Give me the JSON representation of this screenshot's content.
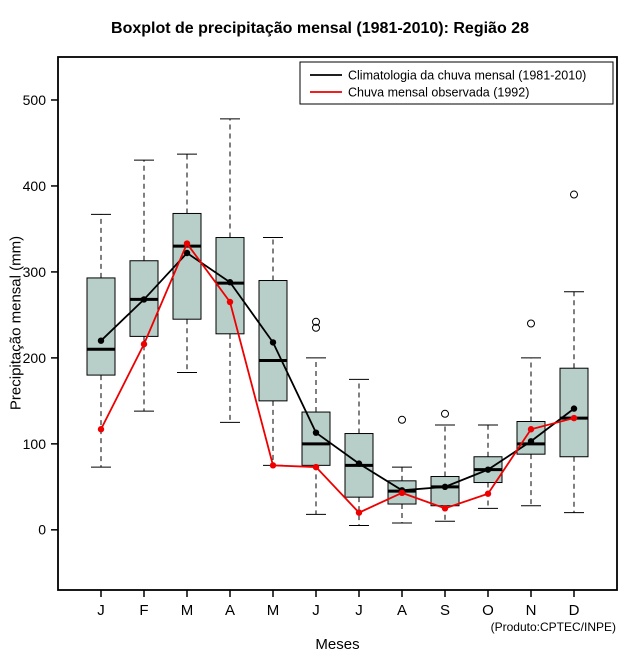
{
  "chart_data": {
    "type": "boxplot",
    "title": "Boxplot de precipitação mensal (1981-2010): Região 28",
    "xlabel": "Meses",
    "ylabel": "Precipitação mensal (mm)",
    "annotation": "(Produto:CPTEC/INPE)",
    "categories": [
      "J",
      "F",
      "M",
      "A",
      "M",
      "J",
      "J",
      "A",
      "S",
      "O",
      "N",
      "D"
    ],
    "yticks": [
      0,
      100,
      200,
      300,
      400,
      500
    ],
    "ylim": [
      -70,
      550
    ],
    "grid": false,
    "legend_position": "top-right-inside",
    "box_fill": "#b8cec8",
    "box_stroke": "#000000",
    "boxes": [
      {
        "low": 73,
        "q1": 180,
        "median": 210,
        "q3": 293,
        "high": 367,
        "outliers": []
      },
      {
        "low": 138,
        "q1": 225,
        "median": 268,
        "q3": 313,
        "high": 430,
        "outliers": []
      },
      {
        "low": 183,
        "q1": 245,
        "median": 330,
        "q3": 368,
        "high": 437,
        "outliers": []
      },
      {
        "low": 125,
        "q1": 228,
        "median": 287,
        "q3": 340,
        "high": 478,
        "outliers": []
      },
      {
        "low": 75,
        "q1": 150,
        "median": 197,
        "q3": 290,
        "high": 340,
        "outliers": []
      },
      {
        "low": 18,
        "q1": 75,
        "median": 100,
        "q3": 137,
        "high": 200,
        "outliers": [
          235,
          242
        ]
      },
      {
        "low": 5,
        "q1": 38,
        "median": 75,
        "q3": 112,
        "high": 175,
        "outliers": []
      },
      {
        "low": 8,
        "q1": 30,
        "median": 45,
        "q3": 57,
        "high": 73,
        "outliers": [
          128
        ]
      },
      {
        "low": 10,
        "q1": 28,
        "median": 50,
        "q3": 62,
        "high": 122,
        "outliers": [
          135
        ]
      },
      {
        "low": 25,
        "q1": 55,
        "median": 70,
        "q3": 85,
        "high": 122,
        "outliers": []
      },
      {
        "low": 28,
        "q1": 88,
        "median": 100,
        "q3": 126,
        "high": 200,
        "outliers": [
          240
        ]
      },
      {
        "low": 20,
        "q1": 85,
        "median": 130,
        "q3": 188,
        "high": 277,
        "outliers": [
          390
        ]
      }
    ],
    "series": [
      {
        "name": "Climatologia da chuva mensal (1981-2010)",
        "color": "#000000",
        "marker": "filled-circle",
        "values": [
          220,
          268,
          322,
          288,
          218,
          113,
          77,
          46,
          50,
          70,
          103,
          141
        ]
      },
      {
        "name": "Chuva mensal observada (1992)",
        "color": "#ee0000",
        "marker": "filled-circle",
        "values": [
          117,
          216,
          333,
          265,
          75,
          73,
          20,
          43,
          25,
          42,
          117,
          130
        ]
      }
    ]
  }
}
